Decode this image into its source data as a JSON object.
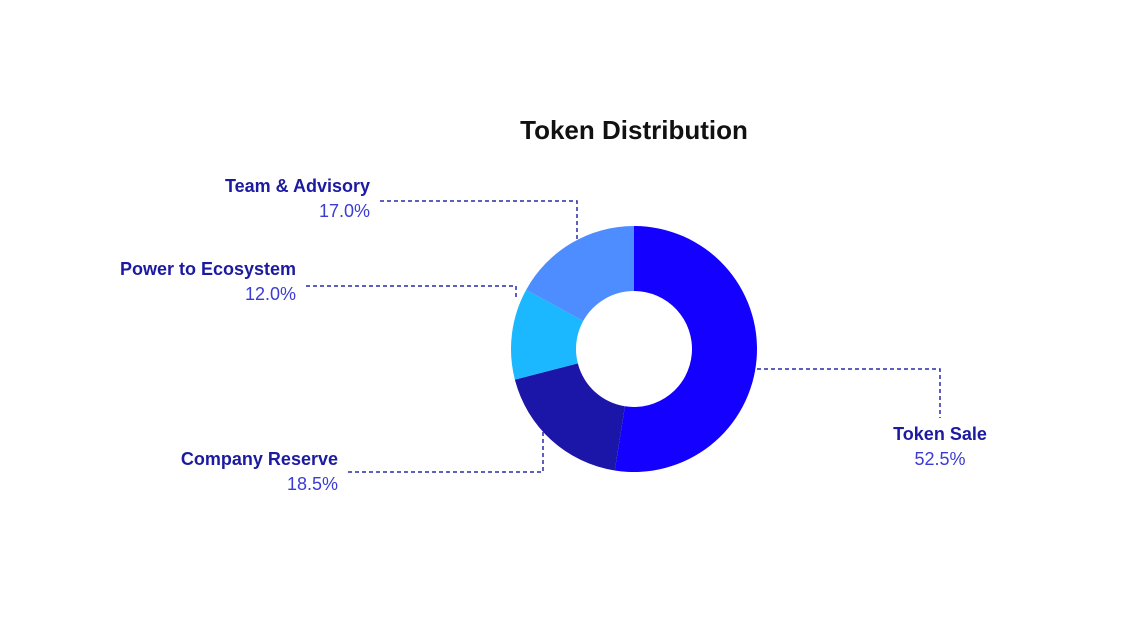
{
  "chart_data": {
    "type": "pie",
    "title": "Token Distribution",
    "categories": [
      "Token Sale",
      "Company Reserve",
      "Power to Ecosystem",
      "Team & Advisory"
    ],
    "values": [
      52.5,
      18.5,
      12.0,
      17.0
    ],
    "value_labels": [
      "52.5%",
      "18.5%",
      "12.0%",
      "17.0%"
    ],
    "colors": [
      "#1400ff",
      "#1c16a8",
      "#1cb8ff",
      "#4d8dff"
    ]
  }
}
